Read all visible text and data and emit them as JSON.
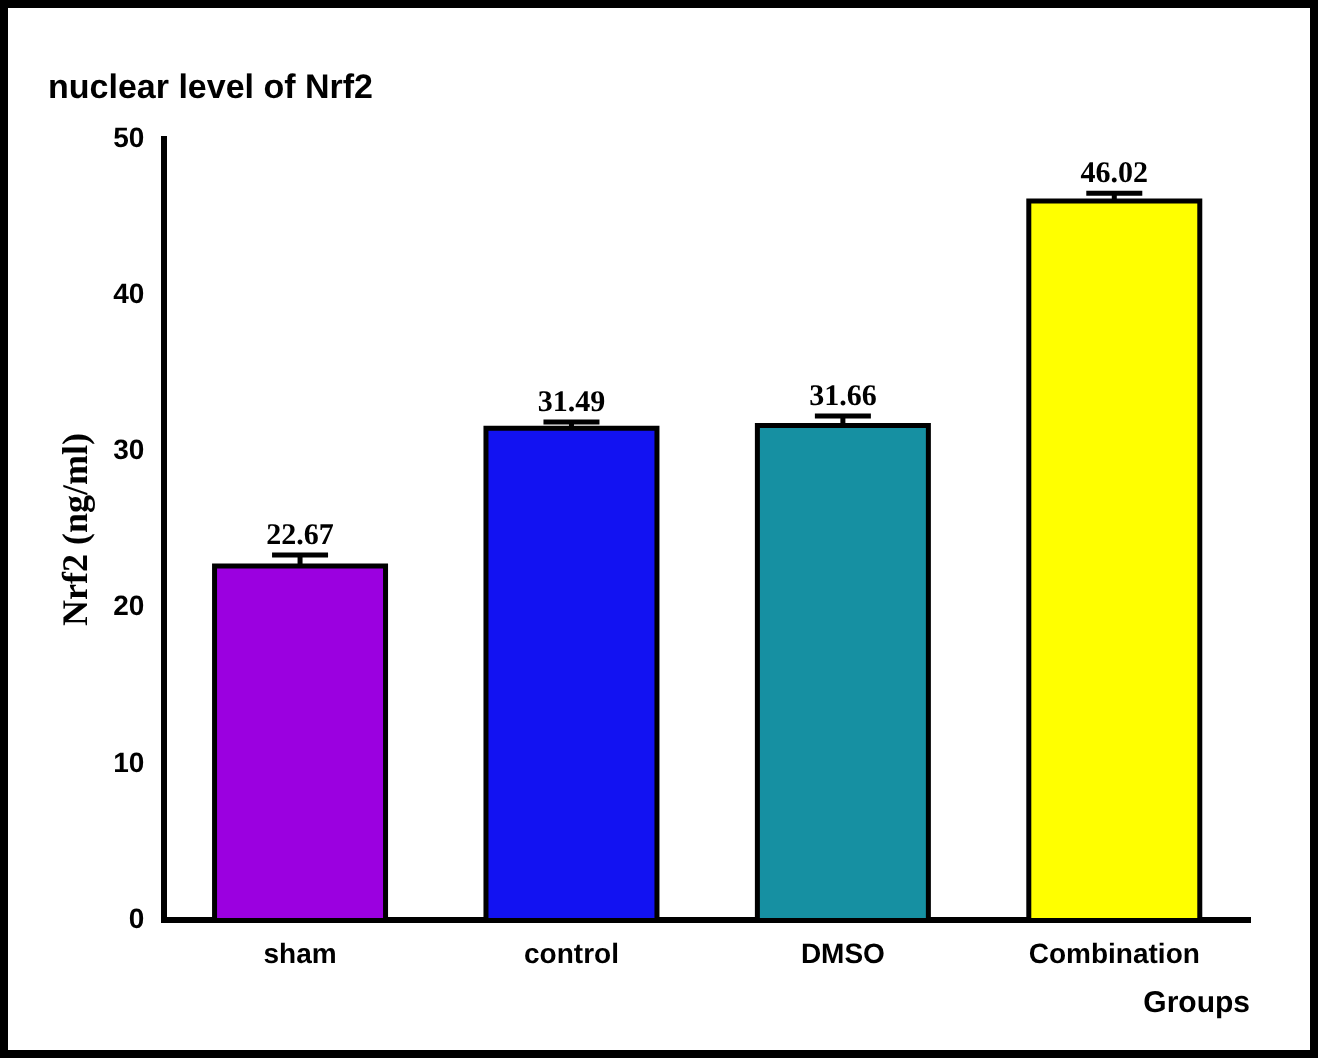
{
  "chart_data": {
    "type": "bar",
    "title": "nuclear level of Nrf2",
    "xlabel": "Groups",
    "ylabel": "Nrf2 (ng/ml)",
    "categories": [
      "sham",
      "control",
      "DMSO",
      "Combination"
    ],
    "values": [
      22.67,
      31.49,
      31.66,
      46.02
    ],
    "colors": [
      "#9b00e0",
      "#1212f2",
      "#1690a2",
      "#ffff00"
    ],
    "errors": [
      0.7,
      0.4,
      0.6,
      0.5
    ],
    "ylim": [
      0,
      50
    ],
    "yticks": [
      0,
      10,
      20,
      30,
      40,
      50
    ],
    "grid": false,
    "legend": false,
    "data_labels": true
  }
}
